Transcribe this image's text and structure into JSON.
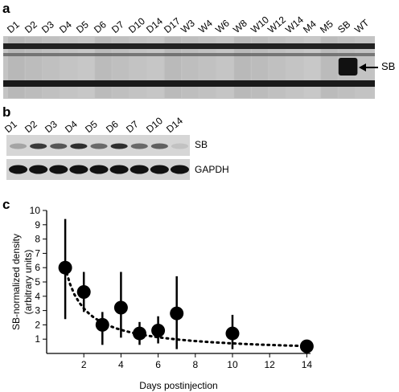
{
  "panels": {
    "a": {
      "letter": "a",
      "lanes": [
        "D1",
        "D2",
        "D3",
        "D4",
        "D5",
        "D6",
        "D7",
        "D10",
        "D14",
        "D17",
        "W3",
        "W4",
        "W6",
        "W8",
        "W10",
        "W12",
        "W14",
        "M4",
        "M5",
        "SB",
        "WT"
      ],
      "band_label": "SB"
    },
    "b": {
      "letter": "b",
      "lanes": [
        "D1",
        "D2",
        "D3",
        "D4",
        "D5",
        "D6",
        "D7",
        "D10",
        "D14"
      ],
      "rows": [
        {
          "label": "SB",
          "intensity": [
            0.25,
            0.8,
            0.65,
            0.85,
            0.55,
            0.85,
            0.55,
            0.6,
            0.1
          ]
        },
        {
          "label": "GAPDH",
          "intensity": [
            1,
            1,
            1,
            1,
            1,
            1,
            1,
            1,
            1
          ]
        }
      ]
    },
    "c": {
      "letter": "c"
    }
  },
  "chart_data": {
    "type": "scatter",
    "title": "",
    "xlabel": "Days postinjection",
    "ylabel": "SB-normalized density\n(arbitrary units)",
    "xlim": [
      0,
      14.2
    ],
    "ylim": [
      0,
      10
    ],
    "xticks": [
      2,
      4,
      6,
      8,
      10,
      12,
      14
    ],
    "yticks": [
      1,
      2,
      3,
      4,
      5,
      6,
      7,
      8,
      9,
      10
    ],
    "series": [
      {
        "points": [
          {
            "x": 1,
            "y": 6.0,
            "low": 2.4,
            "high": 9.4
          },
          {
            "x": 2,
            "y": 4.3,
            "low": 2.9,
            "high": 5.7
          },
          {
            "x": 3,
            "y": 2.0,
            "low": 0.6,
            "high": 2.9
          },
          {
            "x": 4,
            "y": 3.2,
            "low": 1.1,
            "high": 5.7
          },
          {
            "x": 5,
            "y": 1.4,
            "low": 0.6,
            "high": 2.2
          },
          {
            "x": 6,
            "y": 1.6,
            "low": 0.7,
            "high": 2.6
          },
          {
            "x": 7,
            "y": 2.8,
            "low": 0.3,
            "high": 5.4
          },
          {
            "x": 10,
            "y": 1.4,
            "low": 0.3,
            "high": 2.7
          },
          {
            "x": 14,
            "y": 0.5,
            "low": 0.5,
            "high": 0.5
          }
        ]
      }
    ],
    "trendline": "dotted power-law fit",
    "grid": false,
    "legend": "none"
  }
}
